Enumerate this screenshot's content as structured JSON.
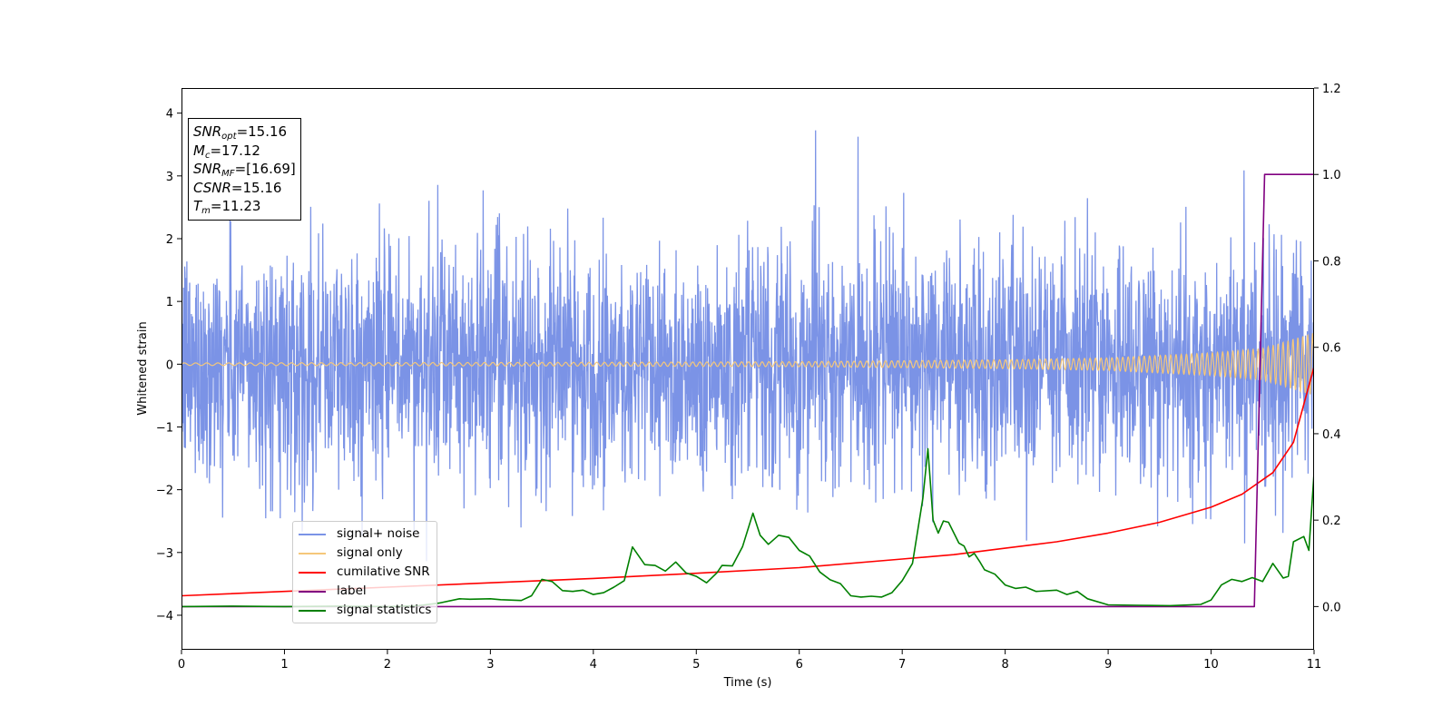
{
  "chart_data": {
    "type": "line",
    "xlabel": "Time (s)",
    "ylabel": "Whitened strain",
    "xlim": [
      0,
      11
    ],
    "ylim_left": [
      -4.55,
      4.4
    ],
    "ylim_right": [
      -0.1,
      1.2
    ],
    "x_ticks": [
      "0",
      "1",
      "2",
      "3",
      "4",
      "5",
      "6",
      "7",
      "8",
      "9",
      "10",
      "11"
    ],
    "y_left_ticks": [
      "−4",
      "−3",
      "−2",
      "−1",
      "0",
      "1",
      "2",
      "3",
      "4"
    ],
    "y_right_ticks": [
      "0.0",
      "0.2",
      "0.4",
      "0.6",
      "0.8",
      "1.0",
      "1.2"
    ],
    "annotations": {
      "snr_opt": {
        "name": "SNR",
        "sub": "opt",
        "value": "=15.16"
      },
      "mc": {
        "name": "M",
        "sub": "c",
        "value": "=17.12"
      },
      "snr_mf": {
        "name": "SNR",
        "sub": "MF",
        "value": "=[16.69]"
      },
      "csnr": {
        "name": "CSNR",
        "sub": "",
        "value": "=15.16"
      },
      "tm": {
        "name": "T",
        "sub": "m",
        "value": "=11.23"
      }
    },
    "legend_placement": "lower-left",
    "series": [
      {
        "name": "signal+ noise",
        "axis": "left",
        "color": "#7b93e6",
        "description": "whitened noisy strain, roughly within ±2.7 with spikes up to 3.8 and down to -4.1"
      },
      {
        "name": "signal only",
        "axis": "left",
        "color": "#f5c77a",
        "envelope": {
          "t": [
            0,
            2,
            4,
            6,
            8,
            9,
            10,
            10.5,
            11
          ],
          "amp": [
            0.02,
            0.025,
            0.03,
            0.04,
            0.07,
            0.1,
            0.18,
            0.25,
            0.5
          ]
        }
      },
      {
        "name": "cumilative SNR",
        "axis": "right",
        "color": "#ff0000",
        "x": [
          0,
          1,
          2,
          3,
          4,
          5,
          6,
          7,
          7.5,
          8,
          8.5,
          9,
          9.5,
          10,
          10.3,
          10.6,
          10.8,
          11
        ],
        "values": [
          0.025,
          0.035,
          0.045,
          0.055,
          0.065,
          0.077,
          0.09,
          0.11,
          0.12,
          0.135,
          0.15,
          0.17,
          0.195,
          0.23,
          0.26,
          0.31,
          0.38,
          0.555
        ]
      },
      {
        "name": "label",
        "axis": "right",
        "color": "#800080",
        "x": [
          0,
          10.42,
          10.52,
          11
        ],
        "values": [
          0,
          0,
          1.0,
          1.0
        ]
      },
      {
        "name": "signal statistics",
        "axis": "right",
        "color": "#008000",
        "x": [
          0,
          0.5,
          1.0,
          1.5,
          2.0,
          2.3,
          2.5,
          2.7,
          2.8,
          3.0,
          3.1,
          3.3,
          3.4,
          3.5,
          3.6,
          3.7,
          3.8,
          3.9,
          4.0,
          4.1,
          4.2,
          4.3,
          4.38,
          4.5,
          4.6,
          4.7,
          4.8,
          4.9,
          5.0,
          5.1,
          5.2,
          5.25,
          5.35,
          5.45,
          5.55,
          5.62,
          5.7,
          5.8,
          5.9,
          6.0,
          6.1,
          6.2,
          6.3,
          6.4,
          6.5,
          6.6,
          6.7,
          6.8,
          6.9,
          7.0,
          7.1,
          7.2,
          7.25,
          7.3,
          7.35,
          7.4,
          7.45,
          7.55,
          7.6,
          7.65,
          7.7,
          7.75,
          7.8,
          7.9,
          8.0,
          8.1,
          8.2,
          8.3,
          8.5,
          8.6,
          8.7,
          8.8,
          9.0,
          9.3,
          9.6,
          9.9,
          10.0,
          10.1,
          10.2,
          10.3,
          10.4,
          10.5,
          10.6,
          10.7,
          10.75,
          10.8,
          10.9,
          10.95,
          11.0
        ],
        "values": [
          0.0,
          0.001,
          0.0,
          0.001,
          0.0,
          0.002,
          0.008,
          0.018,
          0.017,
          0.018,
          0.016,
          0.014,
          0.025,
          0.063,
          0.058,
          0.037,
          0.035,
          0.038,
          0.028,
          0.032,
          0.045,
          0.06,
          0.138,
          0.097,
          0.095,
          0.082,
          0.103,
          0.078,
          0.07,
          0.055,
          0.078,
          0.095,
          0.094,
          0.139,
          0.216,
          0.165,
          0.144,
          0.165,
          0.16,
          0.13,
          0.117,
          0.08,
          0.062,
          0.053,
          0.025,
          0.022,
          0.024,
          0.022,
          0.032,
          0.06,
          0.1,
          0.25,
          0.365,
          0.2,
          0.17,
          0.198,
          0.195,
          0.147,
          0.14,
          0.115,
          0.123,
          0.105,
          0.085,
          0.075,
          0.05,
          0.042,
          0.045,
          0.035,
          0.038,
          0.028,
          0.035,
          0.018,
          0.004,
          0.003,
          0.002,
          0.005,
          0.015,
          0.05,
          0.063,
          0.058,
          0.067,
          0.058,
          0.1,
          0.066,
          0.07,
          0.15,
          0.162,
          0.13,
          0.31
        ]
      }
    ]
  }
}
